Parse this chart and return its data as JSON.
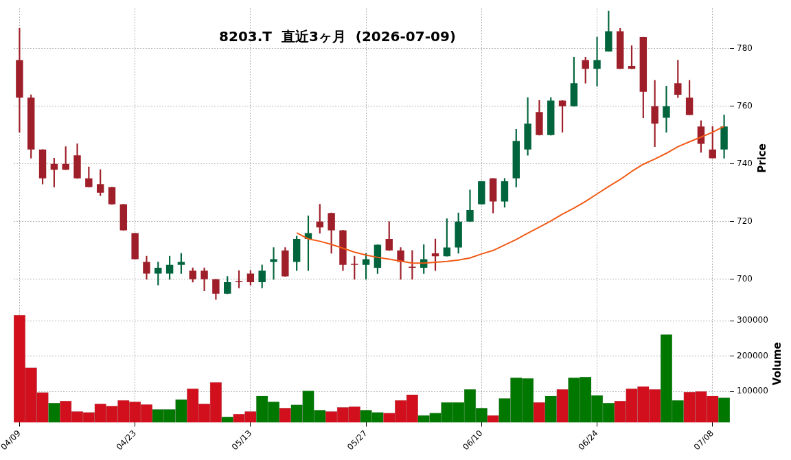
{
  "chart_data": [
    {
      "type": "candlestick",
      "title": "8203.T  直近3ヶ月  (2026-07-09)",
      "ylabel": "Price",
      "categories": [
        null,
        null,
        null,
        null,
        null,
        null,
        null,
        null,
        null,
        null,
        null,
        null,
        null,
        null,
        null,
        null,
        null,
        null,
        null,
        null,
        null,
        null,
        null,
        null,
        null,
        null,
        null,
        null,
        null,
        null,
        null,
        null,
        null,
        null,
        null,
        null,
        null,
        null,
        null,
        null,
        null,
        null,
        null,
        null,
        null,
        null,
        null,
        null,
        null,
        null,
        null,
        null,
        null,
        null,
        null,
        null,
        null,
        null,
        null,
        null,
        null,
        null
      ],
      "ohlc": [
        [
          776,
          787,
          751,
          763
        ],
        [
          763,
          764,
          742,
          745
        ],
        [
          745,
          745,
          733,
          735
        ],
        [
          740,
          742,
          732,
          738
        ],
        [
          740,
          746,
          738,
          738
        ],
        [
          743,
          747,
          735,
          735
        ],
        [
          735,
          739,
          732,
          732
        ],
        [
          733,
          738,
          729,
          730
        ],
        [
          732,
          732,
          726,
          726
        ],
        [
          726,
          726,
          717,
          717
        ],
        [
          716,
          716,
          707,
          707
        ],
        [
          706,
          708,
          700,
          702
        ],
        [
          702,
          706,
          698,
          704
        ],
        [
          702,
          708,
          700,
          705
        ],
        [
          705,
          709,
          702,
          706
        ],
        [
          703,
          704,
          699,
          700
        ],
        [
          703,
          704,
          696,
          700
        ],
        [
          700,
          700,
          693,
          695
        ],
        [
          695,
          701,
          695,
          699
        ],
        [
          699,
          703,
          697,
          699
        ],
        [
          702,
          703,
          698,
          699
        ],
        [
          699,
          705,
          697,
          703
        ],
        [
          706,
          711,
          700,
          707
        ],
        [
          710,
          711,
          701,
          701
        ],
        [
          706,
          715,
          703,
          714
        ],
        [
          714,
          722,
          703,
          716
        ],
        [
          720,
          726,
          716,
          718
        ],
        [
          723,
          723,
          709,
          717
        ],
        [
          717,
          717,
          703,
          705
        ],
        [
          705,
          708,
          700,
          705
        ],
        [
          705,
          709,
          700,
          707
        ],
        [
          704,
          712,
          702,
          712
        ],
        [
          714,
          720,
          710,
          710
        ],
        [
          710,
          711,
          700,
          706
        ],
        [
          704,
          710,
          700,
          704
        ],
        [
          704,
          712,
          702,
          707
        ],
        [
          709,
          714,
          703,
          708
        ],
        [
          708,
          721,
          708,
          711
        ],
        [
          711,
          723,
          709,
          720
        ],
        [
          720,
          731,
          720,
          724
        ],
        [
          726,
          734,
          726,
          734
        ],
        [
          735,
          735,
          723,
          727
        ],
        [
          727,
          735,
          725,
          734
        ],
        [
          735,
          752,
          732,
          748
        ],
        [
          745,
          763,
          743,
          754
        ],
        [
          758,
          762,
          750,
          750
        ],
        [
          750,
          763,
          750,
          762
        ],
        [
          762,
          762,
          751,
          760
        ],
        [
          760,
          777,
          760,
          768
        ],
        [
          776,
          777,
          768,
          773
        ],
        [
          773,
          784,
          767,
          776
        ],
        [
          779,
          793,
          779,
          786
        ],
        [
          786,
          787,
          773,
          773
        ],
        [
          774,
          781,
          773,
          773
        ],
        [
          784,
          784,
          756,
          765
        ],
        [
          760,
          769,
          746,
          754
        ],
        [
          756,
          767,
          751,
          760
        ],
        [
          768,
          776,
          763,
          764
        ],
        [
          763,
          769,
          757,
          757
        ],
        [
          753,
          755,
          744,
          747
        ],
        [
          745,
          753,
          742,
          742
        ],
        [
          745,
          757,
          742,
          753
        ]
      ],
      "colors": [
        "#9e1f29",
        "#9e1f29",
        "#9e1f29",
        "#9e1f29",
        "#9e1f29",
        "#9e1f29",
        "#9e1f29",
        "#9e1f29",
        "#9e1f29",
        "#9e1f29",
        "#9e1f29",
        "#9e1f29",
        "#00643c",
        "#00643c",
        "#00643c",
        "#9e1f29",
        "#9e1f29",
        "#9e1f29",
        "#00643c",
        "#9e1f29",
        "#9e1f29",
        "#00643c",
        "#00643c",
        "#9e1f29",
        "#00643c",
        "#00643c",
        "#9e1f29",
        "#9e1f29",
        "#9e1f29",
        "#9e1f29",
        "#00643c",
        "#00643c",
        "#9e1f29",
        "#9e1f29",
        "#9e1f29",
        "#00643c",
        "#9e1f29",
        "#00643c",
        "#00643c",
        "#00643c",
        "#00643c",
        "#9e1f29",
        "#00643c",
        "#00643c",
        "#00643c",
        "#9e1f29",
        "#00643c",
        "#9e1f29",
        "#00643c",
        "#9e1f29",
        "#00643c",
        "#00643c",
        "#9e1f29",
        "#9e1f29",
        "#9e1f29",
        "#9e1f29",
        "#00643c",
        "#9e1f29",
        "#9e1f29",
        "#9e1f29",
        "#9e1f29",
        "#00643c"
      ],
      "series": [
        {
          "type": "line",
          "color": "#f25a16",
          "values": [
            null,
            null,
            null,
            null,
            null,
            null,
            null,
            null,
            null,
            null,
            null,
            null,
            null,
            null,
            null,
            null,
            null,
            null,
            null,
            null,
            null,
            null,
            null,
            null,
            716.1,
            714,
            713.2,
            712.1,
            710.8,
            709.4,
            708.4,
            707.6,
            707,
            706.3,
            705.6,
            705.6,
            705.9,
            706.2,
            706.7,
            707.4,
            708.8,
            710,
            711.9,
            713.8,
            716,
            718.1,
            720.2,
            722.6,
            724.7,
            727,
            729.6,
            732.2,
            734.6,
            737.4,
            739.9,
            741.7,
            743.7,
            746,
            747.7,
            749.3,
            751,
            753.1
          ]
        }
      ],
      "marker": "none",
      "ylim": [
        690,
        794
      ],
      "yticks": [
        700,
        720,
        740,
        760,
        780
      ],
      "grid": true,
      "legend": false,
      "tick_labels": "y"
    },
    {
      "type": "bar",
      "ylabel": "Volume",
      "categories": [
        "04/09",
        null,
        null,
        null,
        null,
        null,
        null,
        null,
        null,
        null,
        "04/23",
        null,
        null,
        null,
        null,
        null,
        null,
        null,
        null,
        null,
        "05/13",
        null,
        null,
        null,
        null,
        null,
        null,
        null,
        null,
        null,
        "05/27",
        null,
        null,
        null,
        null,
        null,
        null,
        null,
        null,
        null,
        "06/10",
        null,
        null,
        null,
        null,
        null,
        null,
        null,
        null,
        null,
        "06/24",
        null,
        null,
        null,
        null,
        null,
        null,
        null,
        null,
        null,
        "07/08",
        null
      ],
      "values": [
        316000,
        167000,
        97000,
        67000,
        73000,
        43000,
        41000,
        65000,
        59000,
        75000,
        71000,
        63000,
        49000,
        49000,
        77000,
        108000,
        65000,
        126000,
        28000,
        36000,
        43000,
        87000,
        71000,
        53000,
        62000,
        102000,
        47000,
        43000,
        55000,
        57000,
        47000,
        41000,
        39000,
        75000,
        91000,
        32000,
        39000,
        69000,
        69000,
        106000,
        53000,
        32000,
        80000,
        139000,
        137000,
        69000,
        87000,
        106000,
        139000,
        141000,
        89000,
        67000,
        73000,
        108000,
        114000,
        106000,
        261000,
        75000,
        98000,
        100000,
        87000,
        82000
      ],
      "colors": [
        "#d20f1c",
        "#d20f1c",
        "#d20f1c",
        "#007800",
        "#d20f1c",
        "#d20f1c",
        "#d20f1c",
        "#d20f1c",
        "#d20f1c",
        "#d20f1c",
        "#d20f1c",
        "#d20f1c",
        "#007800",
        "#007800",
        "#007800",
        "#d20f1c",
        "#d20f1c",
        "#d20f1c",
        "#007800",
        "#d20f1c",
        "#d20f1c",
        "#007800",
        "#007800",
        "#d20f1c",
        "#007800",
        "#007800",
        "#007800",
        "#d20f1c",
        "#d20f1c",
        "#d20f1c",
        "#007800",
        "#007800",
        "#d20f1c",
        "#d20f1c",
        "#d20f1c",
        "#007800",
        "#007800",
        "#007800",
        "#007800",
        "#007800",
        "#007800",
        "#d20f1c",
        "#007800",
        "#007800",
        "#007800",
        "#d20f1c",
        "#007800",
        "#d20f1c",
        "#007800",
        "#007800",
        "#007800",
        "#007800",
        "#d20f1c",
        "#d20f1c",
        "#d20f1c",
        "#d20f1c",
        "#007800",
        "#007800",
        "#d20f1c",
        "#d20f1c",
        "#d20f1c",
        "#007800"
      ],
      "ylim": [
        12000,
        345000
      ],
      "yticks": [
        100000,
        200000,
        300000
      ],
      "grid": true,
      "legend": false
    }
  ]
}
